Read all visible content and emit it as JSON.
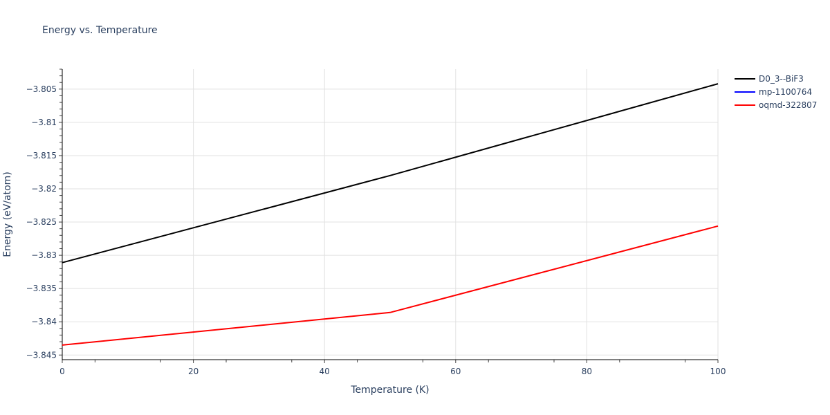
{
  "chart_data": {
    "type": "line",
    "title": "Energy vs. Temperature",
    "xlabel": "Temperature (K)",
    "ylabel": "Energy (eV/atom)",
    "xlim": [
      0,
      100
    ],
    "ylim": [
      -3.8457,
      -3.802
    ],
    "x_ticks": [
      0,
      20,
      40,
      60,
      80,
      100
    ],
    "x_tick_labels": [
      "0",
      "20",
      "40",
      "60",
      "80",
      "100"
    ],
    "y_ticks": [
      -3.845,
      -3.84,
      -3.835,
      -3.83,
      -3.825,
      -3.82,
      -3.815,
      -3.81,
      -3.805
    ],
    "y_tick_labels": [
      "−3.845",
      "−3.84",
      "−3.835",
      "−3.83",
      "−3.825",
      "−3.82",
      "−3.815",
      "−3.81",
      "−3.805"
    ],
    "grid": true,
    "legend_position": "right-top",
    "series": [
      {
        "name": "D0_3--BiF3",
        "color": "#000000",
        "x": [
          0,
          50,
          100
        ],
        "values": [
          -3.8311,
          -3.818,
          -3.8042
        ]
      },
      {
        "name": "mp-1100764",
        "color": "#0000ff",
        "x": [],
        "values": []
      },
      {
        "name": "oqmd-322807",
        "color": "#ff0000",
        "x": [
          0,
          50,
          100
        ],
        "values": [
          -3.8435,
          -3.8386,
          -3.8256
        ]
      }
    ]
  }
}
